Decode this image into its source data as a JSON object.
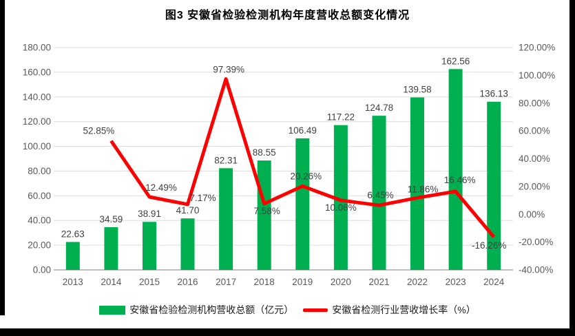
{
  "page": {
    "background": "#ffffff",
    "border_color": "#000000"
  },
  "chart_data": {
    "type": "bar+line",
    "title": "图3 安徽省检验检测机构年度营收总额变化情况",
    "categories": [
      "2013",
      "2014",
      "2015",
      "2016",
      "2017",
      "2018",
      "2019",
      "2020",
      "2021",
      "2022",
      "2023",
      "2024"
    ],
    "series": [
      {
        "name": "安徽省检验检测机构营收总额（亿元）",
        "type": "bar",
        "axis": "left",
        "color": "#00B050",
        "values": [
          22.63,
          34.59,
          38.91,
          41.7,
          82.31,
          88.55,
          106.49,
          117.22,
          124.78,
          139.58,
          162.56,
          136.13
        ],
        "data_labels": [
          "22.63",
          "34.59",
          "38.91",
          "41.70",
          "82.31",
          "88.55",
          "106.49",
          "117.22",
          "124.78",
          "139.58",
          "162.56",
          "136.13"
        ]
      },
      {
        "name": "安徽省检测行业营收增长率（%）",
        "type": "line",
        "axis": "right",
        "color": "#FF0000",
        "values": [
          null,
          52.85,
          12.49,
          7.17,
          97.39,
          7.58,
          20.26,
          10.08,
          6.45,
          11.86,
          16.46,
          -16.26
        ],
        "data_labels": [
          null,
          "52.85%",
          "12.49%",
          "7.17%",
          "97.39%",
          "7.58%",
          "20.26%",
          "10.08%",
          "6.45%",
          "11.86%",
          "16.46%",
          "-16.26%"
        ]
      }
    ],
    "left_axis": {
      "min": 0,
      "max": 180,
      "step": 20,
      "labels": [
        "180.00",
        "160.00",
        "140.00",
        "120.00",
        "100.00",
        "80.00",
        "60.00",
        "40.00",
        "20.00",
        "0.00"
      ]
    },
    "right_axis": {
      "min": -40,
      "max": 120,
      "step": 20,
      "labels": [
        "120.00%",
        "100.00%",
        "80.00%",
        "60.00%",
        "40.00%",
        "20.00%",
        "0.00%",
        "-20.00%",
        "-40.00%"
      ]
    },
    "grid": true,
    "legend_position": "bottom",
    "colors": {
      "gridline": "#DCDCDC",
      "axis_line": "#BFBFBF",
      "tick_label": "#595959",
      "data_label": "#404040"
    }
  },
  "legend": {
    "items": [
      {
        "label": "安徽省检验检测机构营收总额（亿元）",
        "swatch": "bar",
        "color": "#00B050"
      },
      {
        "label": "安徽省检测行业营收增长率（%）",
        "swatch": "line",
        "color": "#FF0000"
      }
    ]
  }
}
